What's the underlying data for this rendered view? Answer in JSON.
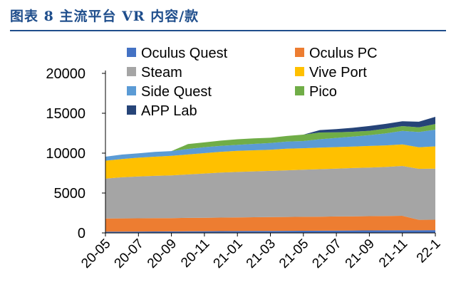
{
  "figure_title": "图表 8   主流平台 VR 内容/款",
  "colors": {
    "title": "#1f4e8c",
    "Oculus Quest": "#4472c4",
    "Oculus PC": "#ed7d31",
    "Steam": "#a5a5a5",
    "Vive Port": "#ffc000",
    "Side Quest": "#5b9bd5",
    "Pico": "#70ad47",
    "APP Lab": "#264478"
  },
  "chart_data": {
    "type": "area",
    "stacked": true,
    "title": "",
    "xlabel": "",
    "ylabel": "",
    "ylim": [
      0,
      20000
    ],
    "yticks": [
      0,
      5000,
      10000,
      15000,
      20000
    ],
    "grid": false,
    "legend_position": "top, two columns",
    "x_tick_labels": [
      "20-05",
      "20-07",
      "20-09",
      "20-11",
      "21-01",
      "21-03",
      "21-05",
      "21-07",
      "21-09",
      "21-11",
      "22-1"
    ],
    "x": [
      "20-05",
      "20-06",
      "20-07",
      "20-08",
      "20-09",
      "20-10",
      "20-11",
      "20-12",
      "21-01",
      "21-02",
      "21-03",
      "21-04",
      "21-05",
      "21-06",
      "21-07",
      "21-08",
      "21-09",
      "21-10",
      "21-11",
      "21-12",
      "22-1"
    ],
    "series": [
      {
        "name": "Oculus Quest",
        "values": [
          150,
          160,
          170,
          180,
          190,
          200,
          210,
          220,
          230,
          240,
          250,
          260,
          270,
          280,
          290,
          300,
          310,
          320,
          330,
          340,
          350
        ]
      },
      {
        "name": "Oculus PC",
        "values": [
          1650,
          1660,
          1660,
          1670,
          1670,
          1680,
          1690,
          1700,
          1710,
          1720,
          1730,
          1740,
          1750,
          1760,
          1770,
          1780,
          1790,
          1800,
          1810,
          1300,
          1300
        ]
      },
      {
        "name": "Steam",
        "values": [
          5000,
          5150,
          5250,
          5300,
          5350,
          5450,
          5550,
          5650,
          5700,
          5750,
          5800,
          5850,
          5900,
          5950,
          6000,
          6050,
          6100,
          6150,
          6250,
          6400,
          6400
        ]
      },
      {
        "name": "Vive Port",
        "values": [
          2250,
          2300,
          2350,
          2400,
          2450,
          2500,
          2550,
          2600,
          2650,
          2650,
          2650,
          2700,
          2700,
          2700,
          2700,
          2700,
          2700,
          2700,
          2700,
          2700,
          2800
        ]
      },
      {
        "name": "Side Quest",
        "values": [
          500,
          550,
          550,
          600,
          600,
          700,
          750,
          750,
          750,
          800,
          850,
          900,
          900,
          1050,
          1150,
          1250,
          1350,
          1500,
          1700,
          1900,
          2100
        ]
      },
      {
        "name": "Pico",
        "values": [
          0,
          0,
          0,
          0,
          0,
          600,
          600,
          650,
          700,
          700,
          650,
          700,
          800,
          850,
          700,
          600,
          550,
          600,
          600,
          600,
          700
        ]
      },
      {
        "name": "APP Lab",
        "values": [
          0,
          0,
          0,
          0,
          0,
          0,
          0,
          0,
          0,
          0,
          0,
          0,
          0,
          300,
          400,
          500,
          600,
          600,
          600,
          700,
          900
        ]
      }
    ]
  }
}
